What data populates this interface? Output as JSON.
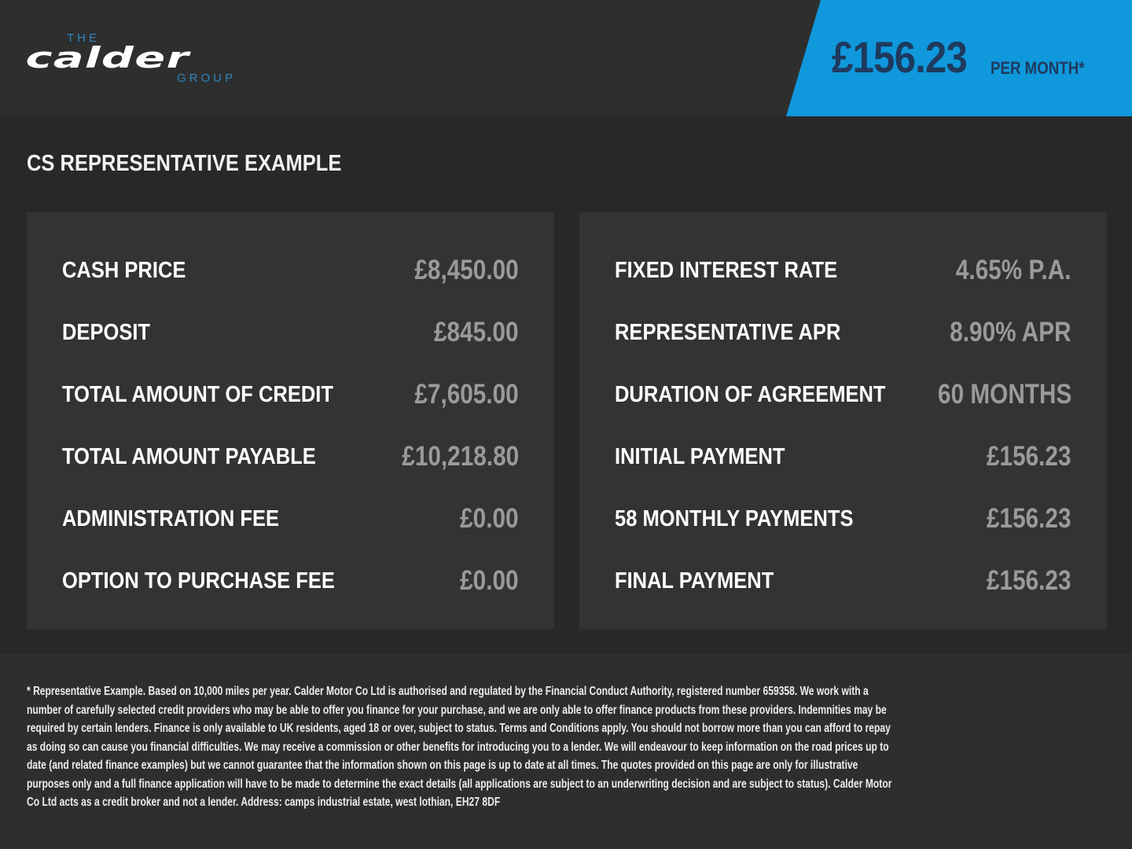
{
  "brand": {
    "logo_text": "THE calder GROUP",
    "accent_color": "#0f98dc",
    "price_text_color": "#1e3a5e"
  },
  "banner": {
    "price": "£156.23",
    "per_month": "PER MONTH*"
  },
  "section_title": "CS REPRESENTATIVE EXAMPLE",
  "left_panel": [
    {
      "label": "CASH PRICE",
      "value": "£8,450.00"
    },
    {
      "label": "DEPOSIT",
      "value": "£845.00"
    },
    {
      "label": "TOTAL AMOUNT OF CREDIT",
      "value": "£7,605.00"
    },
    {
      "label": "TOTAL AMOUNT PAYABLE",
      "value": "£10,218.80"
    },
    {
      "label": "ADMINISTRATION FEE",
      "value": "£0.00"
    },
    {
      "label": "OPTION TO PURCHASE FEE",
      "value": "£0.00"
    }
  ],
  "right_panel": [
    {
      "label": "FIXED INTEREST RATE",
      "value": "4.65% P.A."
    },
    {
      "label": "REPRESENTATIVE APR",
      "value": "8.90% APR"
    },
    {
      "label": "DURATION OF AGREEMENT",
      "value": "60 MONTHS"
    },
    {
      "label": "INITIAL PAYMENT",
      "value": "£156.23"
    },
    {
      "label": "58 MONTHLY PAYMENTS",
      "value": "£156.23"
    },
    {
      "label": "FINAL PAYMENT",
      "value": "£156.23"
    }
  ],
  "disclaimer": "* Representative Example. Based on 10,000 miles per year. Calder Motor Co Ltd is authorised and regulated by the Financial Conduct Authority, registered number 659358. We work with a number of carefully selected credit providers who may be able to offer you finance for your purchase, and we are only able to offer finance products from these providers. Indemnities may be required by certain lenders. Finance is only available to UK residents, aged 18 or over, subject to status. Terms and Conditions apply. You should not borrow more than you can afford to repay as doing so can cause you financial difficulties. We may receive a commission or other benefits for introducing you to a lender. We will endeavour to keep information on the road prices up to date (and related finance examples) but we cannot guarantee that the information shown on this page is up to date at all times. The quotes provided on this page are only for illustrative purposes only and a full finance application will have to be made to determine the exact details (all applications are subject to an underwriting decision and are subject to status). Calder Motor Co Ltd acts as a credit broker and not a lender. Address: camps industrial estate, west lothian, EH27 8DF"
}
